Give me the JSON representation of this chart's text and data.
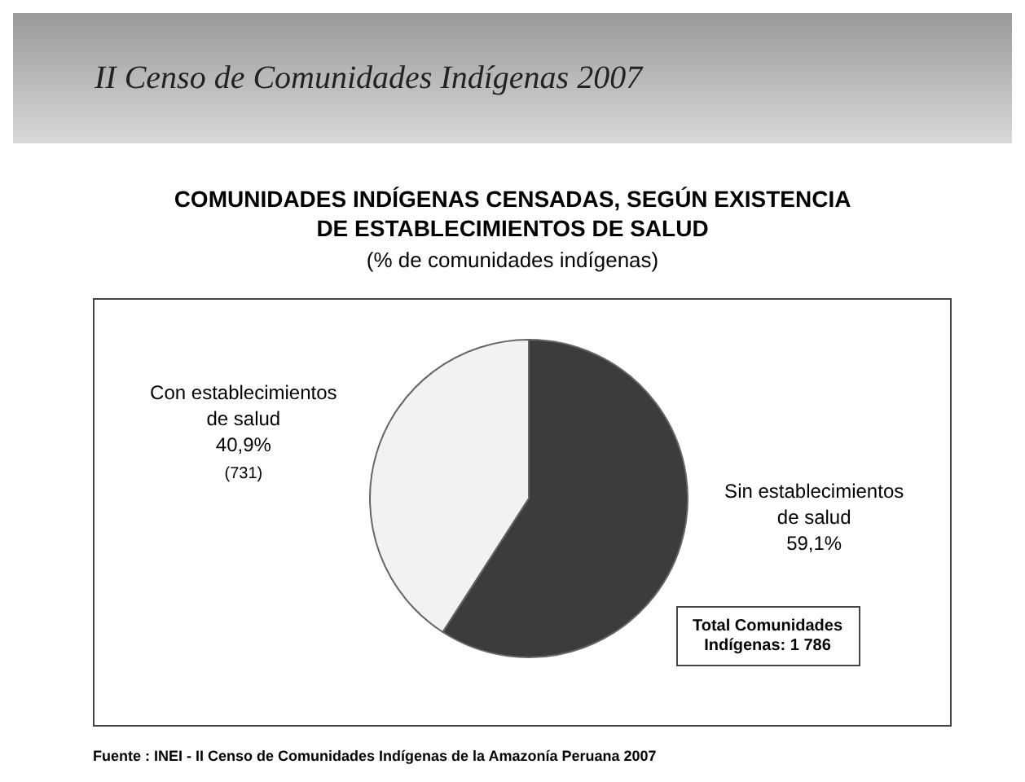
{
  "chart_data": {
    "type": "pie",
    "title": "COMUNIDADES INDÍGENAS CENSADAS, SEGÚN EXISTENCIA DE ESTABLECIMIENTOS DE SALUD",
    "subtitle": "(% de comunidades indígenas)",
    "categories": [
      "Con establecimientos de salud",
      "Sin establecimientos de salud"
    ],
    "values": [
      40.9,
      59.1
    ],
    "colors": [
      "#f2f2f2",
      "#3c3c3c"
    ],
    "value_labels": [
      "40,9%",
      "59,1%"
    ],
    "annotations": [
      "II Censo de Comunidades Indígenas 2007",
      {
        "text": "(731)",
        "x": "Con establecimientos de salud"
      },
      "Total Comunidades Indígenas: 1 786",
      "Fuente : INEI - II Censo de Comunidades Indígenas de la Amazonía Peruana 2007"
    ],
    "legend": false
  }
}
